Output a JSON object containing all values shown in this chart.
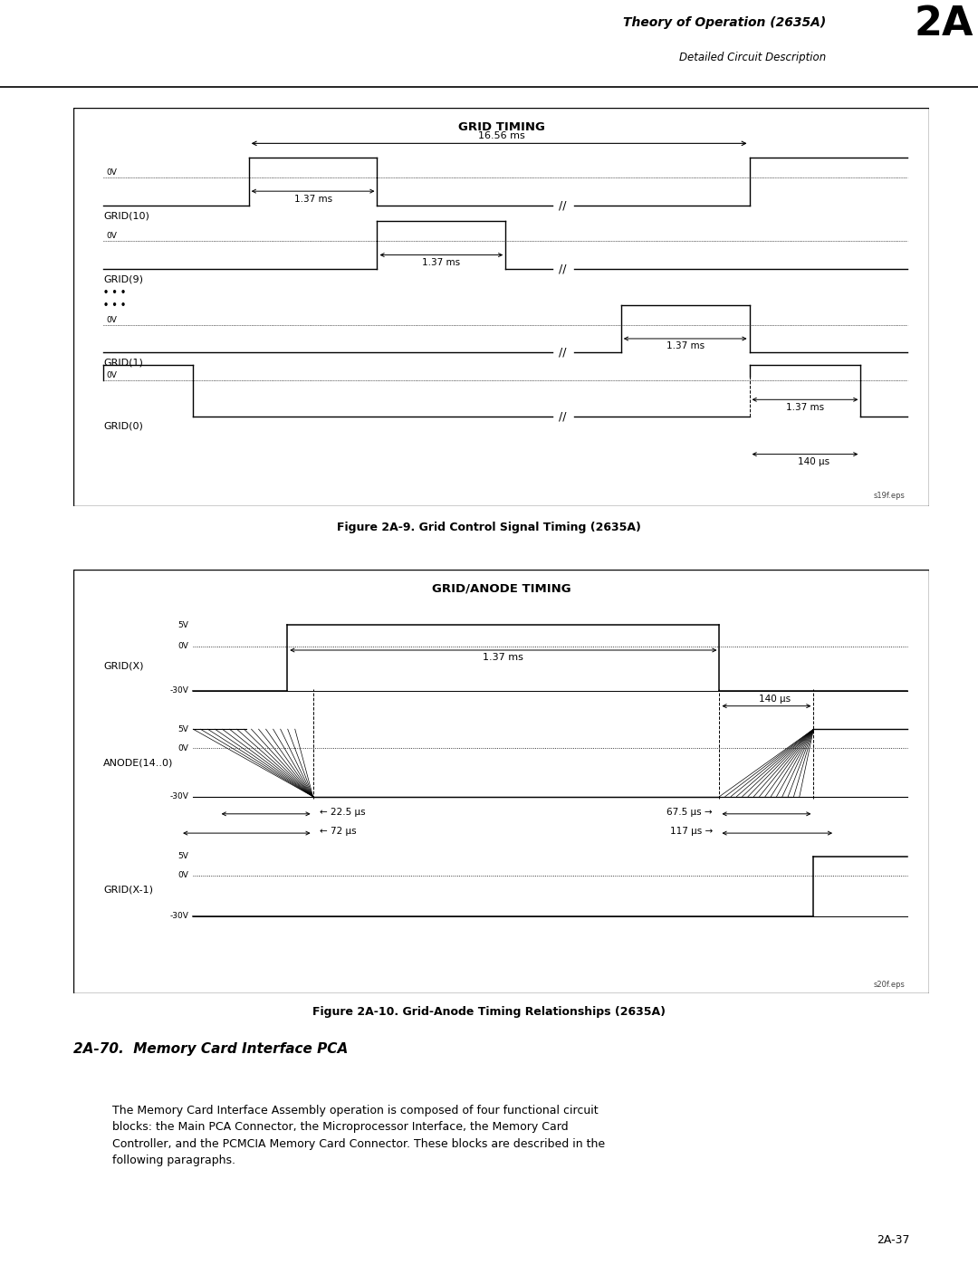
{
  "page_title_line1": "Theory of Operation (2635A)",
  "page_title_line2": "Detailed Circuit Description",
  "page_number": "2A",
  "page_num_right": "2A-37",
  "fig1_title": "GRID TIMING",
  "fig1_caption": "Figure 2A-9. Grid Control Signal Timing (2635A)",
  "fig1_watermark": "s19f.eps",
  "fig2_title": "GRID/ANODE TIMING",
  "fig2_caption": "Figure 2A-10. Grid-Anode Timing Relationships (2635A)",
  "fig2_watermark": "s20f.eps",
  "section_title": "2A-70.  Memory Card Interface PCA",
  "section_body": "The Memory Card Interface Assembly operation is composed of four functional circuit\nblocks: the Main PCA Connector, the Microprocessor Interface, the Memory Card\nController, and the PCMCIA Memory Card Connector. These blocks are described in the\nfollowing paragraphs.",
  "background_color": "#ffffff"
}
